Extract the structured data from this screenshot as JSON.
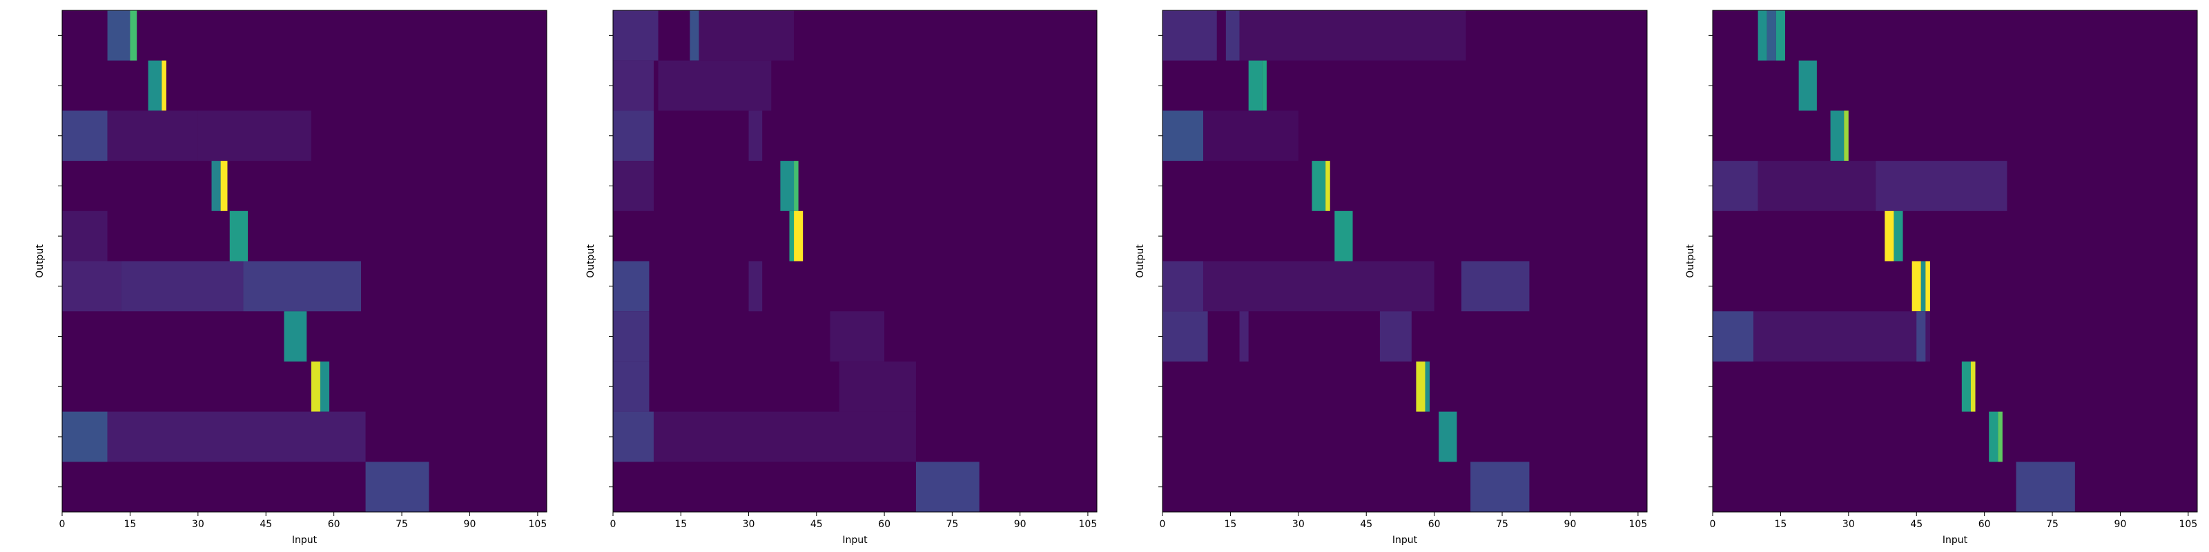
{
  "chart_data": [
    {
      "type": "heatmap",
      "xlabel": "Input",
      "ylabel": "Output",
      "xlim": [
        0,
        107
      ],
      "x_ticks": [
        0,
        15,
        30,
        45,
        60,
        75,
        90,
        105
      ],
      "rows": 10,
      "background_value": 0,
      "colormap": "viridis",
      "rows_data": [
        [
          {
            "x": [
              10,
              15
            ],
            "v": 0.25
          },
          {
            "x": [
              15,
              16.5
            ],
            "v": 0.7
          }
        ],
        [
          {
            "x": [
              19,
              22
            ],
            "v": 0.5
          },
          {
            "x": [
              22,
              23
            ],
            "v": 1.0
          }
        ],
        [
          {
            "x": [
              0,
              10
            ],
            "v": 0.2
          },
          {
            "x": [
              10,
              30
            ],
            "v": 0.05
          },
          {
            "x": [
              30,
              55
            ],
            "v": 0.05
          }
        ],
        [
          {
            "x": [
              33,
              35
            ],
            "v": 0.45
          },
          {
            "x": [
              35,
              36.5
            ],
            "v": 1.0
          }
        ],
        [
          {
            "x": [
              37,
              41
            ],
            "v": 0.55
          },
          {
            "x": [
              0,
              10
            ],
            "v": 0.06
          }
        ],
        [
          {
            "x": [
              0,
              13
            ],
            "v": 0.1
          },
          {
            "x": [
              13,
              40
            ],
            "v": 0.12
          },
          {
            "x": [
              40,
              66
            ],
            "v": 0.18
          }
        ],
        [
          {
            "x": [
              49,
              54
            ],
            "v": 0.5
          }
        ],
        [
          {
            "x": [
              55,
              57
            ],
            "v": 0.95
          },
          {
            "x": [
              57,
              59
            ],
            "v": 0.5
          }
        ],
        [
          {
            "x": [
              0,
              10
            ],
            "v": 0.25
          },
          {
            "x": [
              10,
              67
            ],
            "v": 0.08
          }
        ],
        [
          {
            "x": [
              67,
              81
            ],
            "v": 0.2
          }
        ]
      ]
    },
    {
      "type": "heatmap",
      "xlabel": "Input",
      "ylabel": "Output",
      "xlim": [
        0,
        107
      ],
      "x_ticks": [
        0,
        15,
        30,
        45,
        60,
        75,
        90,
        105
      ],
      "rows": 10,
      "background_value": 0,
      "colormap": "viridis",
      "rows_data": [
        [
          {
            "x": [
              0,
              10
            ],
            "v": 0.12
          },
          {
            "x": [
              17,
              19
            ],
            "v": 0.25
          },
          {
            "x": [
              19,
              40
            ],
            "v": 0.04
          }
        ],
        [
          {
            "x": [
              0,
              9
            ],
            "v": 0.1
          },
          {
            "x": [
              10,
              35
            ],
            "v": 0.05
          }
        ],
        [
          {
            "x": [
              0,
              9
            ],
            "v": 0.15
          },
          {
            "x": [
              30,
              33
            ],
            "v": 0.08
          }
        ],
        [
          {
            "x": [
              37,
              40
            ],
            "v": 0.5
          },
          {
            "x": [
              40,
              41
            ],
            "v": 0.7
          },
          {
            "x": [
              0,
              9
            ],
            "v": 0.06
          }
        ],
        [
          {
            "x": [
              39,
              40
            ],
            "v": 0.6
          },
          {
            "x": [
              40,
              42
            ],
            "v": 1.0
          }
        ],
        [
          {
            "x": [
              0,
              8
            ],
            "v": 0.2
          },
          {
            "x": [
              30,
              33
            ],
            "v": 0.08
          }
        ],
        [
          {
            "x": [
              0,
              8
            ],
            "v": 0.15
          },
          {
            "x": [
              48,
              60
            ],
            "v": 0.05
          }
        ],
        [
          {
            "x": [
              0,
              8
            ],
            "v": 0.15
          },
          {
            "x": [
              50,
              67
            ],
            "v": 0.04
          }
        ],
        [
          {
            "x": [
              0,
              9
            ],
            "v": 0.18
          },
          {
            "x": [
              9,
              67
            ],
            "v": 0.04
          }
        ],
        [
          {
            "x": [
              67,
              81
            ],
            "v": 0.2
          }
        ]
      ]
    },
    {
      "type": "heatmap",
      "xlabel": "Input",
      "ylabel": "Output",
      "xlim": [
        0,
        107
      ],
      "x_ticks": [
        0,
        15,
        30,
        45,
        60,
        75,
        90,
        105
      ],
      "rows": 10,
      "background_value": 0,
      "colormap": "viridis",
      "rows_data": [
        [
          {
            "x": [
              0,
              12
            ],
            "v": 0.12
          },
          {
            "x": [
              14,
              17
            ],
            "v": 0.15
          },
          {
            "x": [
              17,
              67
            ],
            "v": 0.04
          }
        ],
        [
          {
            "x": [
              19,
              22
            ],
            "v": 0.55
          },
          {
            "x": [
              22,
              23
            ],
            "v": 0.6
          }
        ],
        [
          {
            "x": [
              0,
              9
            ],
            "v": 0.25
          },
          {
            "x": [
              9,
              30
            ],
            "v": 0.03
          }
        ],
        [
          {
            "x": [
              33,
              36
            ],
            "v": 0.55
          },
          {
            "x": [
              36,
              37
            ],
            "v": 0.95
          }
        ],
        [
          {
            "x": [
              38,
              42
            ],
            "v": 0.55
          }
        ],
        [
          {
            "x": [
              0,
              9
            ],
            "v": 0.12
          },
          {
            "x": [
              9,
              60
            ],
            "v": 0.05
          },
          {
            "x": [
              66,
              81
            ],
            "v": 0.15
          }
        ],
        [
          {
            "x": [
              0,
              10
            ],
            "v": 0.15
          },
          {
            "x": [
              17,
              19
            ],
            "v": 0.1
          },
          {
            "x": [
              48,
              55
            ],
            "v": 0.12
          }
        ],
        [
          {
            "x": [
              56,
              58
            ],
            "v": 0.95
          },
          {
            "x": [
              58,
              59
            ],
            "v": 0.5
          }
        ],
        [
          {
            "x": [
              61,
              65
            ],
            "v": 0.5
          }
        ],
        [
          {
            "x": [
              68,
              81
            ],
            "v": 0.2
          }
        ]
      ]
    },
    {
      "type": "heatmap",
      "xlabel": "Input",
      "ylabel": "Output",
      "xlim": [
        0,
        107
      ],
      "x_ticks": [
        0,
        15,
        30,
        45,
        60,
        75,
        90,
        105
      ],
      "rows": 10,
      "background_value": 0,
      "colormap": "viridis",
      "rows_data": [
        [
          {
            "x": [
              10,
              12
            ],
            "v": 0.5
          },
          {
            "x": [
              12,
              14
            ],
            "v": 0.3
          },
          {
            "x": [
              14,
              16
            ],
            "v": 0.55
          }
        ],
        [
          {
            "x": [
              19,
              23
            ],
            "v": 0.5
          }
        ],
        [
          {
            "x": [
              26,
              29
            ],
            "v": 0.5
          },
          {
            "x": [
              29,
              30
            ],
            "v": 0.85
          }
        ],
        [
          {
            "x": [
              0,
              10
            ],
            "v": 0.12
          },
          {
            "x": [
              10,
              36
            ],
            "v": 0.05
          },
          {
            "x": [
              36,
              65
            ],
            "v": 0.1
          }
        ],
        [
          {
            "x": [
              38,
              40
            ],
            "v": 1.0
          },
          {
            "x": [
              40,
              42
            ],
            "v": 0.55
          }
        ],
        [
          {
            "x": [
              44,
              46
            ],
            "v": 1.0
          },
          {
            "x": [
              46,
              47
            ],
            "v": 0.5
          },
          {
            "x": [
              47,
              48
            ],
            "v": 1.0
          }
        ],
        [
          {
            "x": [
              0,
              9
            ],
            "v": 0.2
          },
          {
            "x": [
              9,
              48
            ],
            "v": 0.06
          },
          {
            "x": [
              45,
              47
            ],
            "v": 0.2
          }
        ],
        [
          {
            "x": [
              55,
              57
            ],
            "v": 0.55
          },
          {
            "x": [
              57,
              58
            ],
            "v": 0.95
          }
        ],
        [
          {
            "x": [
              61,
              63
            ],
            "v": 0.55
          },
          {
            "x": [
              63,
              64
            ],
            "v": 0.75
          }
        ],
        [
          {
            "x": [
              67,
              80
            ],
            "v": 0.2
          }
        ]
      ]
    }
  ]
}
